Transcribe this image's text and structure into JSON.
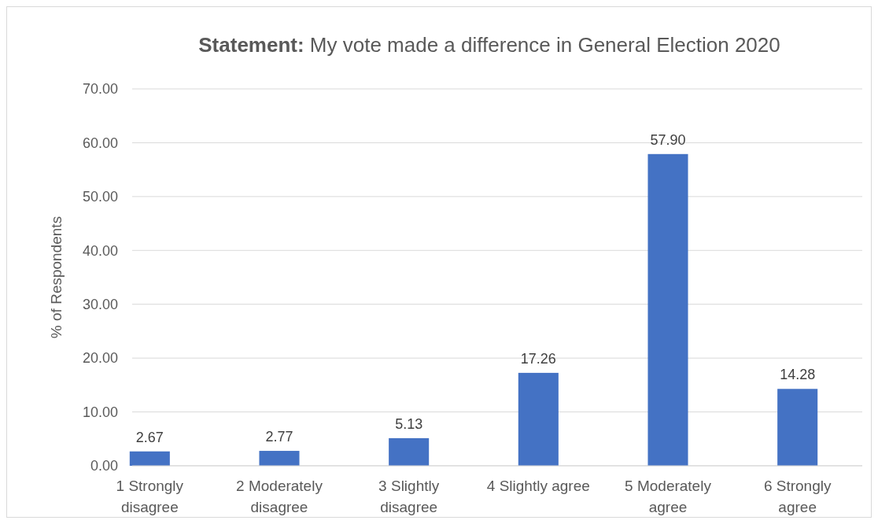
{
  "chart_data": {
    "type": "bar",
    "title": "Statement: My vote made a difference in General Election 2020",
    "ylabel": "% of Respondents",
    "categories": [
      "1 Strongly disagree",
      "2 Moderately disagree",
      "3 Slightly disagree",
      "4 Slightly agree",
      "5 Moderately agree",
      "6 Strongly agree"
    ],
    "values": [
      2.67,
      2.77,
      5.13,
      17.26,
      57.9,
      14.28
    ],
    "value_labels": [
      "2.67",
      "2.77",
      "5.13",
      "17.26",
      "57.90",
      "14.28"
    ],
    "color": "#4472c4",
    "ylim": [
      0,
      70
    ],
    "yticks": [
      {
        "value": 0,
        "label": "0.00"
      },
      {
        "value": 10,
        "label": "10.00"
      },
      {
        "value": 20,
        "label": "20.00"
      },
      {
        "value": 30,
        "label": "30.00"
      },
      {
        "value": 40,
        "label": "40.00"
      },
      {
        "value": 50,
        "label": "50.00"
      },
      {
        "value": 60,
        "label": "60.00"
      },
      {
        "value": 70,
        "label": "70.00"
      }
    ],
    "grid": "y"
  }
}
